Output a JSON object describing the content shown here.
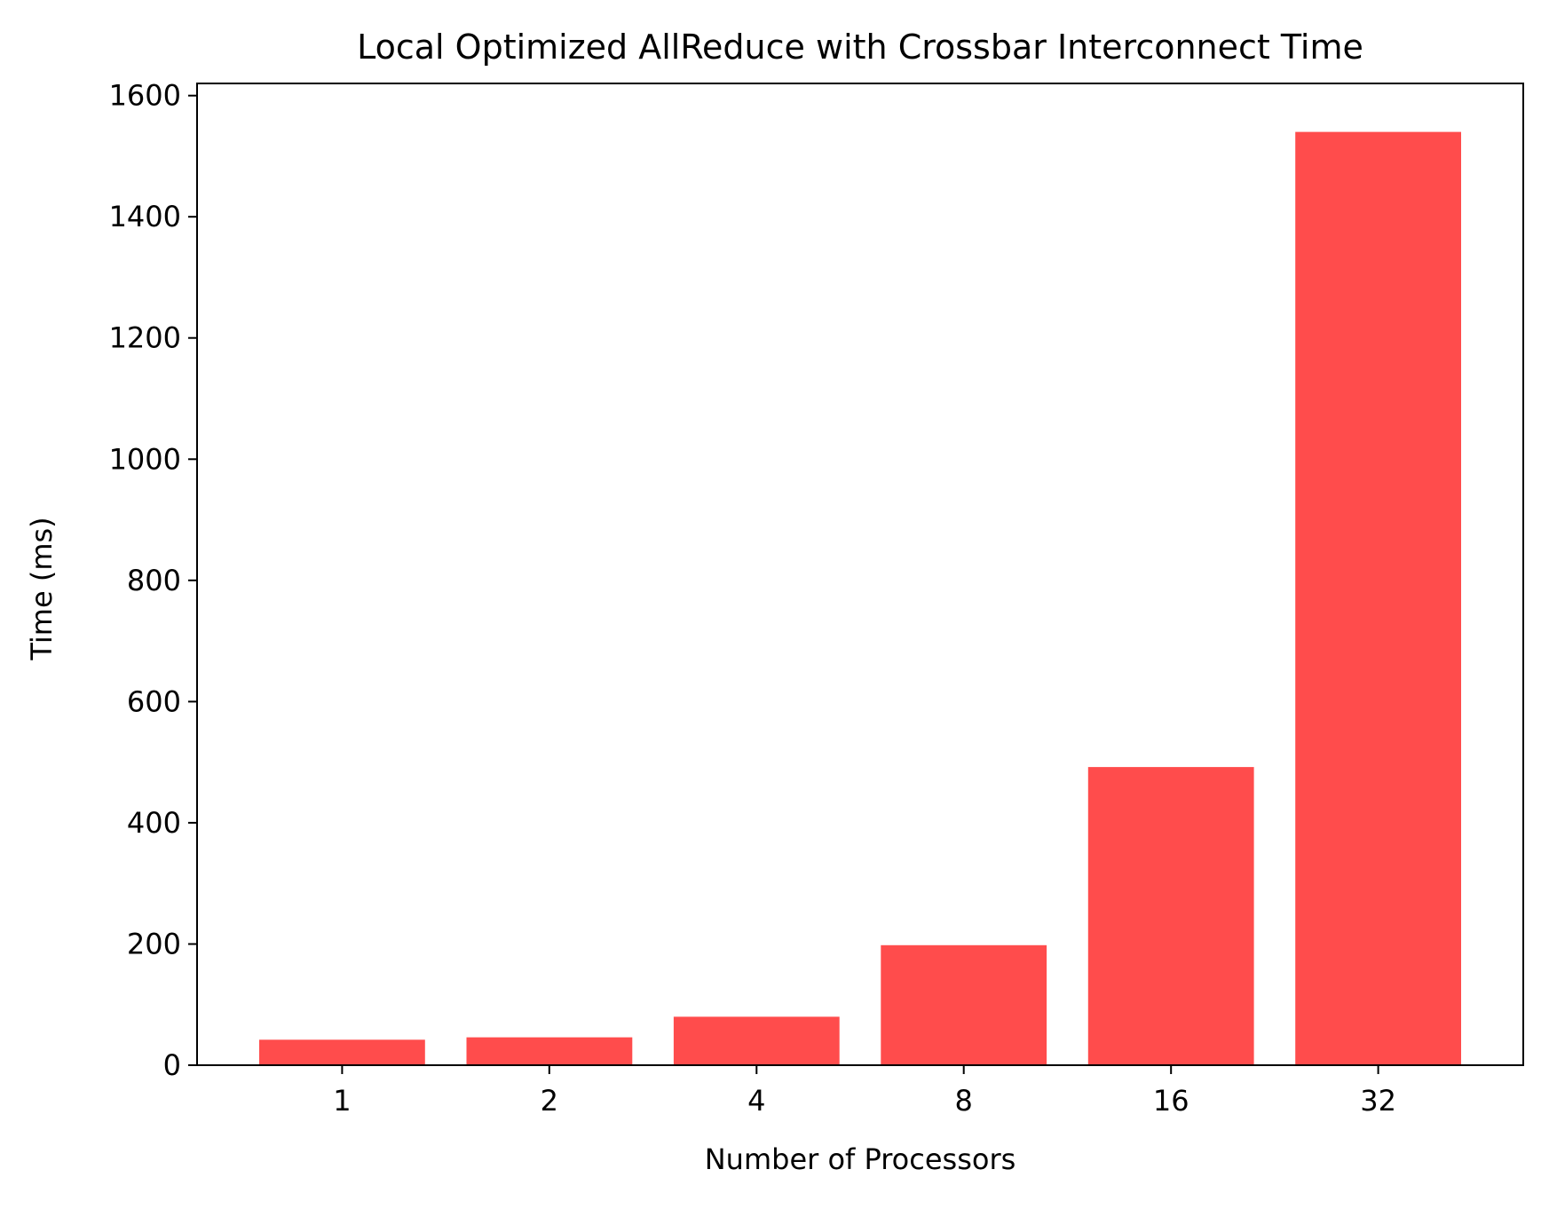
{
  "chart_data": {
    "type": "bar",
    "title": "Local Optimized AllReduce with Crossbar Interconnect Time",
    "xlabel": "Number of Processors",
    "ylabel": "Time (ms)",
    "categories": [
      "1",
      "2",
      "4",
      "8",
      "16",
      "32"
    ],
    "values": [
      42,
      46,
      80,
      198,
      492,
      1540
    ],
    "ylim": [
      0,
      1620
    ],
    "yticks": [
      0,
      200,
      400,
      600,
      800,
      1000,
      1200,
      1400,
      1600
    ],
    "bar_color": "#ff4c4c",
    "grid": false,
    "legend": "none"
  }
}
